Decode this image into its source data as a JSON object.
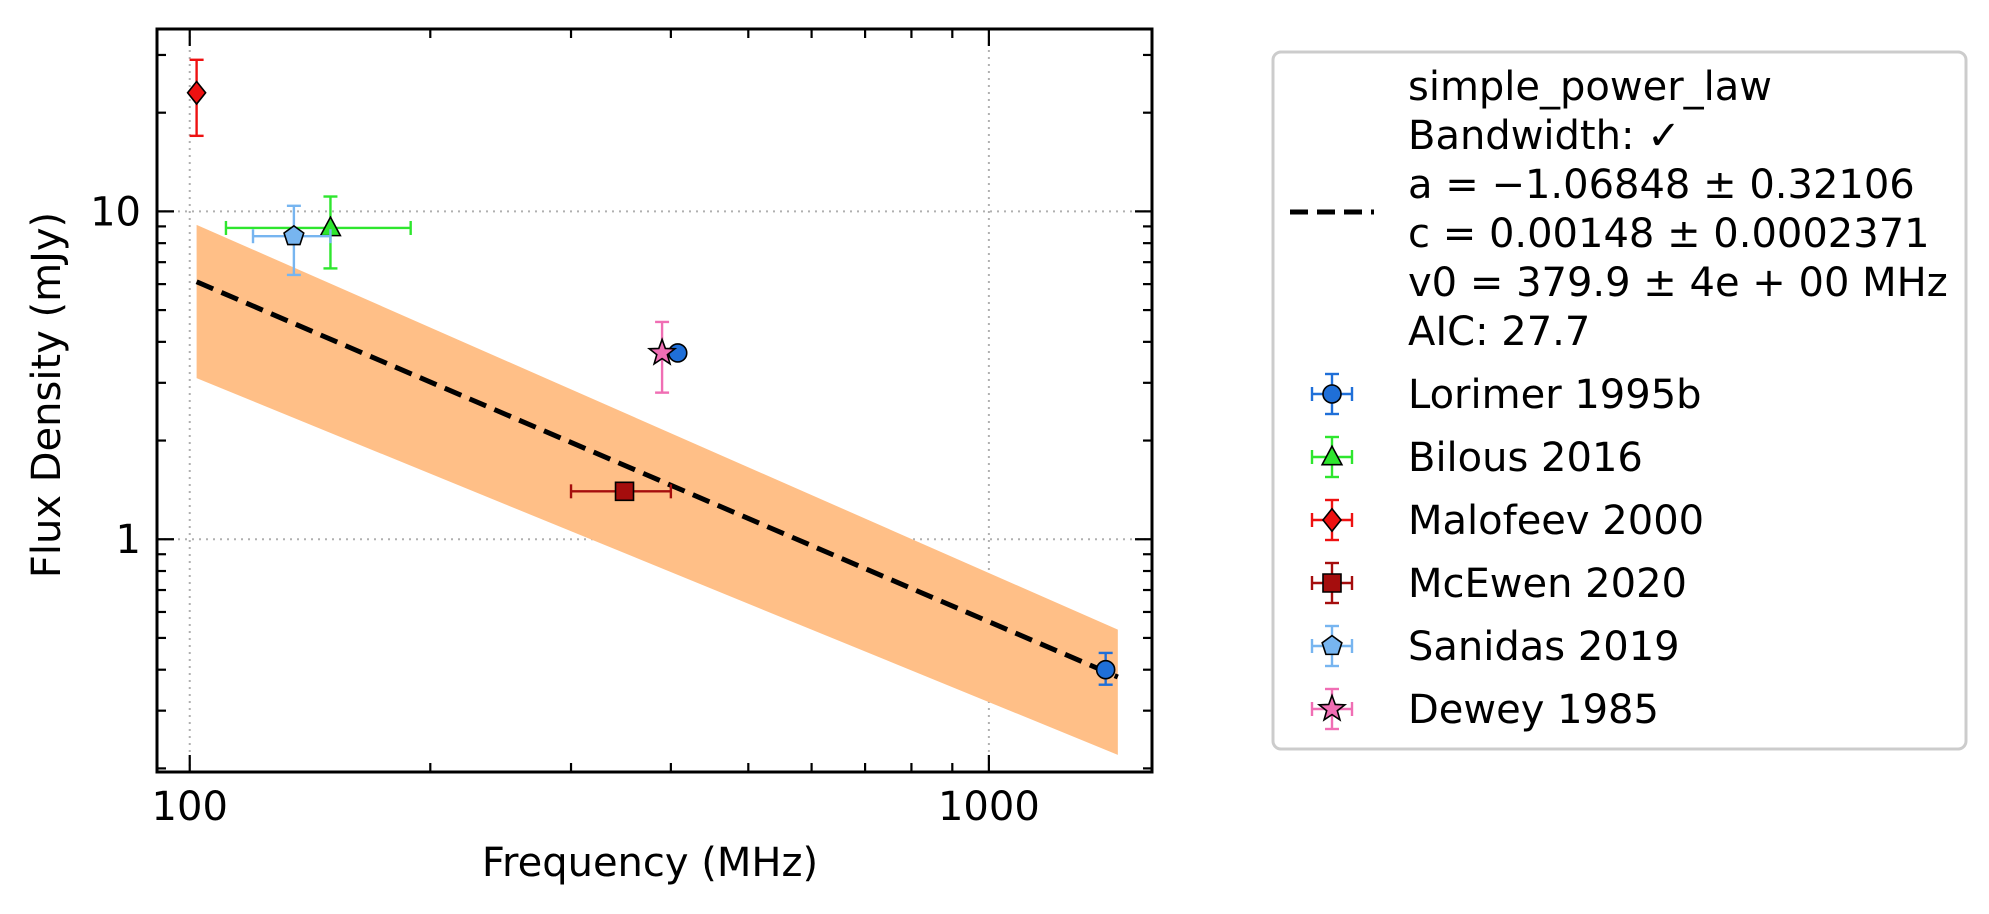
{
  "chart_data": {
    "type": "scatter",
    "title": "",
    "xlabel": "Frequency (MHz)",
    "ylabel": "Flux Density (mJy)",
    "xscale": "log",
    "yscale": "log",
    "xlim": [
      91,
      1600
    ],
    "ylim": [
      0.195,
      36
    ],
    "xtick_labels": [
      "100",
      "1000"
    ],
    "ytick_labels": [
      "1",
      "10"
    ],
    "grid": true,
    "legend_position": "outside-right",
    "fit": {
      "name": "simple_power_law",
      "bandwidth": "Bandwidth: ✓",
      "param_a": "a = −1.06848 ± 0.32106",
      "param_c": "c = 0.00148 ± 0.0002371",
      "param_v0": "v0 = 379.9 ± 4e + 00 MHz",
      "aic": "AIC: 27.7",
      "a": -1.06848,
      "c": 0.00148,
      "v0": 379.9,
      "line": {
        "x": [
          102,
          1450
        ],
        "y": [
          6.1,
          0.38
        ]
      },
      "band": {
        "x": [
          102,
          1450
        ],
        "upper": [
          9.1,
          0.53
        ],
        "lower": [
          3.1,
          0.22
        ]
      },
      "line_color": "#000000",
      "band_color": "#ffbf87"
    },
    "series": [
      {
        "name": "Lorimer 1995b",
        "color": "#1f6fd8",
        "marker": "circle",
        "points": [
          {
            "x": 408,
            "y": 3.7,
            "x_err": [
              0,
              0
            ],
            "y_err": [
              0,
              0
            ]
          },
          {
            "x": 1400,
            "y": 0.4,
            "x_err": [
              0,
              0
            ],
            "y_err": [
              0.04,
              0.05
            ]
          }
        ]
      },
      {
        "name": "Bilous 2016",
        "color": "#2ee62e",
        "marker": "triangle",
        "points": [
          {
            "x": 150,
            "y": 8.9,
            "x_err": [
              39,
              39
            ],
            "y_err": [
              2.2,
              2.2
            ]
          }
        ]
      },
      {
        "name": "Malofeev 2000",
        "color": "#ee1111",
        "marker": "diamond",
        "points": [
          {
            "x": 102,
            "y": 23.0,
            "x_err": [
              0,
              0
            ],
            "y_err": [
              6.0,
              6.0
            ]
          }
        ]
      },
      {
        "name": "McEwen 2020",
        "color": "#a50d0d",
        "marker": "square",
        "points": [
          {
            "x": 350,
            "y": 1.4,
            "x_err": [
              50,
              50
            ],
            "y_err": [
              0.08,
              0.08
            ]
          }
        ]
      },
      {
        "name": "Sanidas 2019",
        "color": "#77b5f0",
        "marker": "pentagon",
        "points": [
          {
            "x": 135,
            "y": 8.4,
            "x_err": [
              15,
              15
            ],
            "y_err": [
              2.0,
              2.0
            ]
          }
        ]
      },
      {
        "name": "Dewey 1985",
        "color": "#f06eb4",
        "marker": "star",
        "points": [
          {
            "x": 390,
            "y": 3.7,
            "x_err": [
              0,
              0
            ],
            "y_err": [
              0.9,
              0.9
            ]
          }
        ]
      }
    ]
  }
}
